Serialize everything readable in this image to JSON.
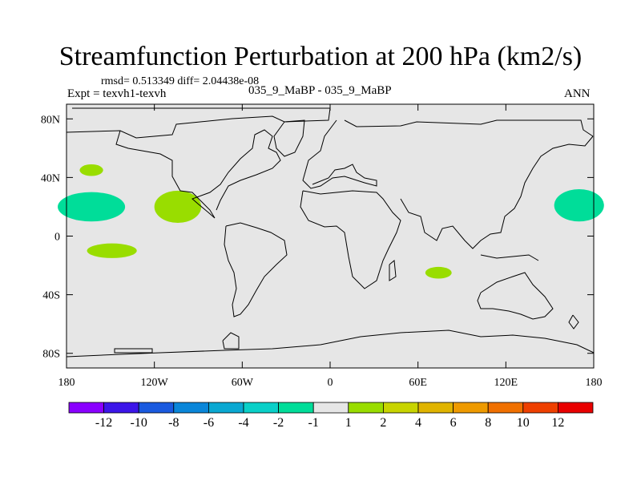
{
  "title": "Streamfunction Perturbation at 200 hPa (km2/s)",
  "stats_line": "rmsd= 0.513349 diff= 2.04438e-08",
  "expt_line": "Expt = texvh1-texvh",
  "case_line": "035_9_MaBP - 035_9_MaBP",
  "season": "ANN",
  "colors": {
    "background": "#e6e6e6",
    "land_outline": "#000000",
    "positive_fill": "#99dd00",
    "negative_fill": "#00dd99"
  },
  "chart_data": {
    "type": "map-contour",
    "projection": "cylindrical-equidistant",
    "lon_range": [
      -180,
      180
    ],
    "lat_range": [
      -90,
      90
    ],
    "x_tick_labels": [
      {
        "lon": -180,
        "label": "180"
      },
      {
        "lon": -120,
        "label": "120W"
      },
      {
        "lon": -60,
        "label": "60W"
      },
      {
        "lon": 0,
        "label": "0"
      },
      {
        "lon": 60,
        "label": "60E"
      },
      {
        "lon": 120,
        "label": "120E"
      },
      {
        "lon": 180,
        "label": "180"
      }
    ],
    "y_tick_labels": [
      {
        "lat": 80,
        "label": "80N"
      },
      {
        "lat": 40,
        "label": "40N"
      },
      {
        "lat": 0,
        "label": "0"
      },
      {
        "lat": -40,
        "label": "40S"
      },
      {
        "lat": -80,
        "label": "80S"
      }
    ],
    "anomaly_regions": [
      {
        "name": "north-pacific-small-positive",
        "sign": "positive",
        "lon": -163,
        "lat": 45,
        "dlon": 8,
        "dlat": 4
      },
      {
        "name": "central-pacific-negative",
        "sign": "negative",
        "lon": -163,
        "lat": 20,
        "dlon": 23,
        "dlat": 10
      },
      {
        "name": "south-pacific-positive",
        "sign": "positive",
        "lon": -149,
        "lat": -10,
        "dlon": 17,
        "dlat": 5
      },
      {
        "name": "central-america-positive",
        "sign": "positive",
        "lon": -104,
        "lat": 20,
        "dlon": 16,
        "dlat": 11
      },
      {
        "name": "indian-ocean-positive",
        "sign": "positive",
        "lon": 74,
        "lat": -25,
        "dlon": 9,
        "dlat": 4
      },
      {
        "name": "west-pacific-negative",
        "sign": "negative",
        "lon": 170,
        "lat": 21,
        "dlon": 17,
        "dlat": 11
      }
    ],
    "colorbar": {
      "colors": [
        "#8a00ff",
        "#3c16e8",
        "#1a5adf",
        "#0a86d9",
        "#0aa8d2",
        "#0ad0c8",
        "#00dd99",
        "#e6e6e6",
        "#99dd00",
        "#c8d400",
        "#e0b400",
        "#ee9a00",
        "#f07000",
        "#ee4000",
        "#e80000"
      ],
      "labels": [
        "-12",
        "-10",
        "-8",
        "-6",
        "-4",
        "-2",
        "-1",
        "1",
        "2",
        "4",
        "6",
        "8",
        "10",
        "12"
      ]
    }
  }
}
